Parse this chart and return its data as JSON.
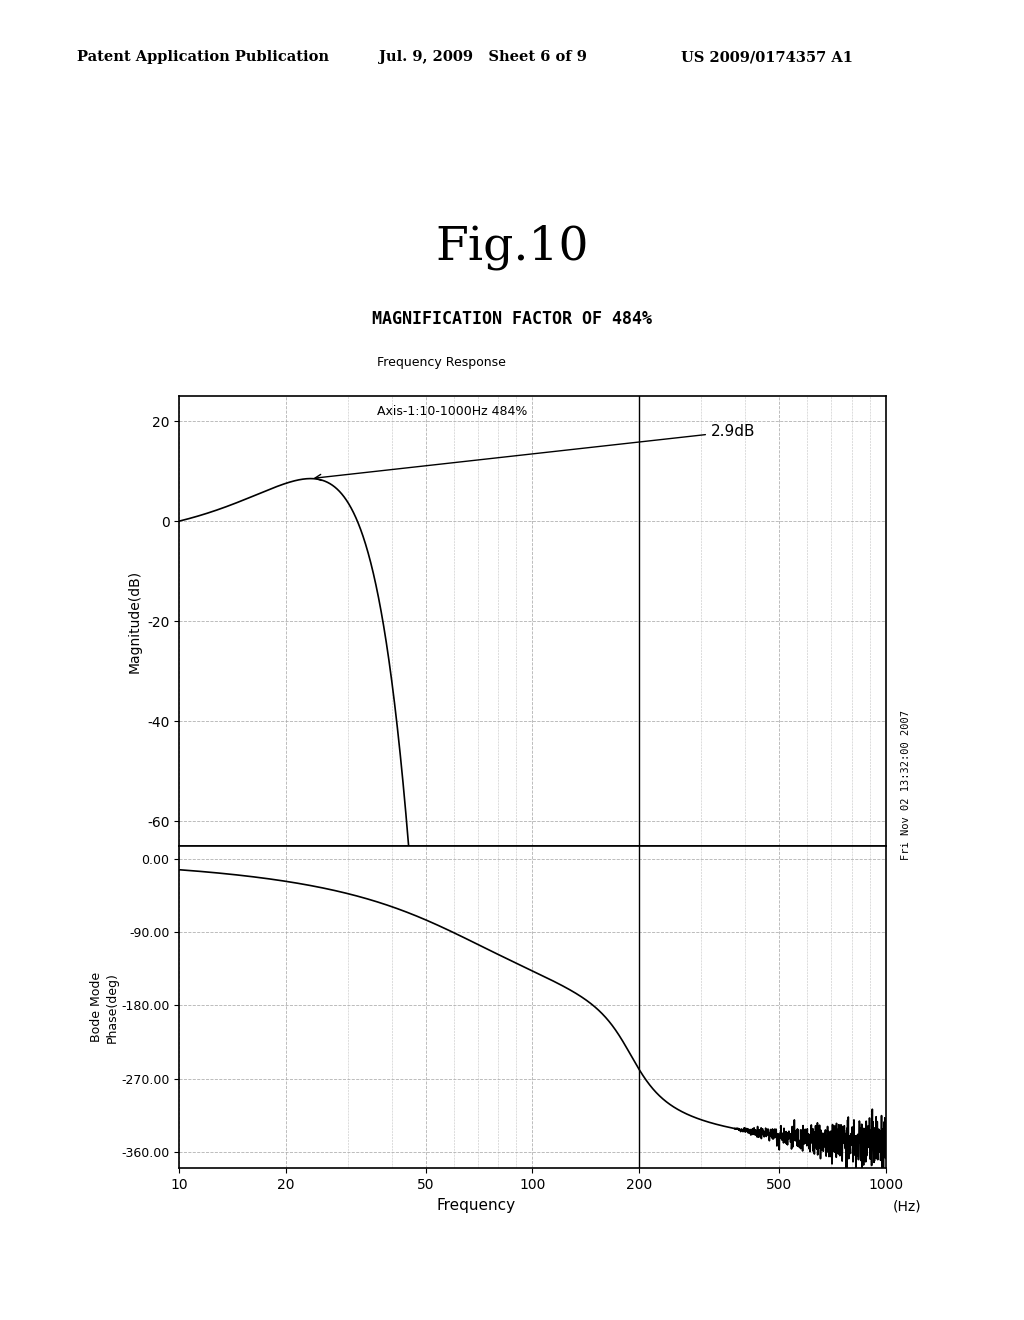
{
  "fig_title": "Fig.10",
  "subtitle": "MAGNIFICATION FACTOR OF 484%",
  "header_left": "Patent Application Publication",
  "header_center": "Jul. 9, 2009   Sheet 6 of 9",
  "header_right": "US 2009/0174357 A1",
  "watermark": "Fri Nov 02 13:32:00 2007",
  "plot_label_line1": "Frequency Response",
  "plot_label_line2": "Axis-1:10-1000Hz 484%",
  "annotation_text": "2.9dB",
  "mag_ylim": [
    -65,
    25
  ],
  "mag_yticks": [
    20,
    0,
    -20,
    -40,
    -60
  ],
  "phase_ylim": [
    -380,
    15
  ],
  "phase_yticks": [
    0.0,
    -90.0,
    -180.0,
    -270.0,
    -360.0
  ],
  "xticks": [
    10,
    20,
    50,
    100,
    200,
    500,
    1000
  ],
  "xlabel": "Frequency",
  "xlabel2": "(Hz)",
  "ylabel_mag": "Magnitude(dB)",
  "ylabel_phase": "Bode Mode\nPhase(deg)",
  "background_color": "#ffffff",
  "plot_color": "#000000",
  "grid_color": "#aaaaaa",
  "vertical_line_x": 200
}
